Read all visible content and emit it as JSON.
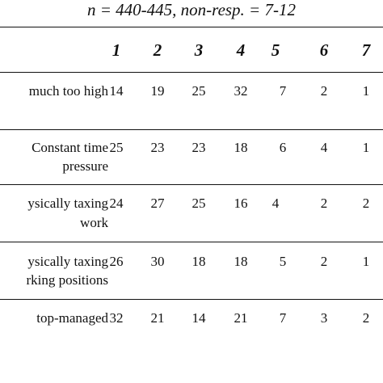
{
  "caption": "n = 440-445, non-resp. = 7-12",
  "columns": [
    "1",
    "2",
    "3",
    "4",
    "5",
    "6",
    "7"
  ],
  "rows": [
    {
      "label_lines": [
        "much too high"
      ],
      "values": [
        "14",
        "19",
        "25",
        "32",
        "7",
        "2",
        "1"
      ]
    },
    {
      "label_lines": [
        "Constant time",
        "pressure"
      ],
      "values": [
        "25",
        "23",
        "23",
        "18",
        "6",
        "4",
        "1"
      ]
    },
    {
      "label_lines": [
        "ysically taxing",
        "work"
      ],
      "values": [
        "24",
        "27",
        "25",
        "16",
        "4",
        "2",
        "2"
      ]
    },
    {
      "label_lines": [
        "ysically taxing",
        "rking positions"
      ],
      "values": [
        "26",
        "30",
        "18",
        "18",
        "5",
        "2",
        "1"
      ]
    },
    {
      "label_lines": [
        "top-managed"
      ],
      "values": [
        "32",
        "21",
        "14",
        "21",
        "7",
        "3",
        "2"
      ]
    }
  ]
}
